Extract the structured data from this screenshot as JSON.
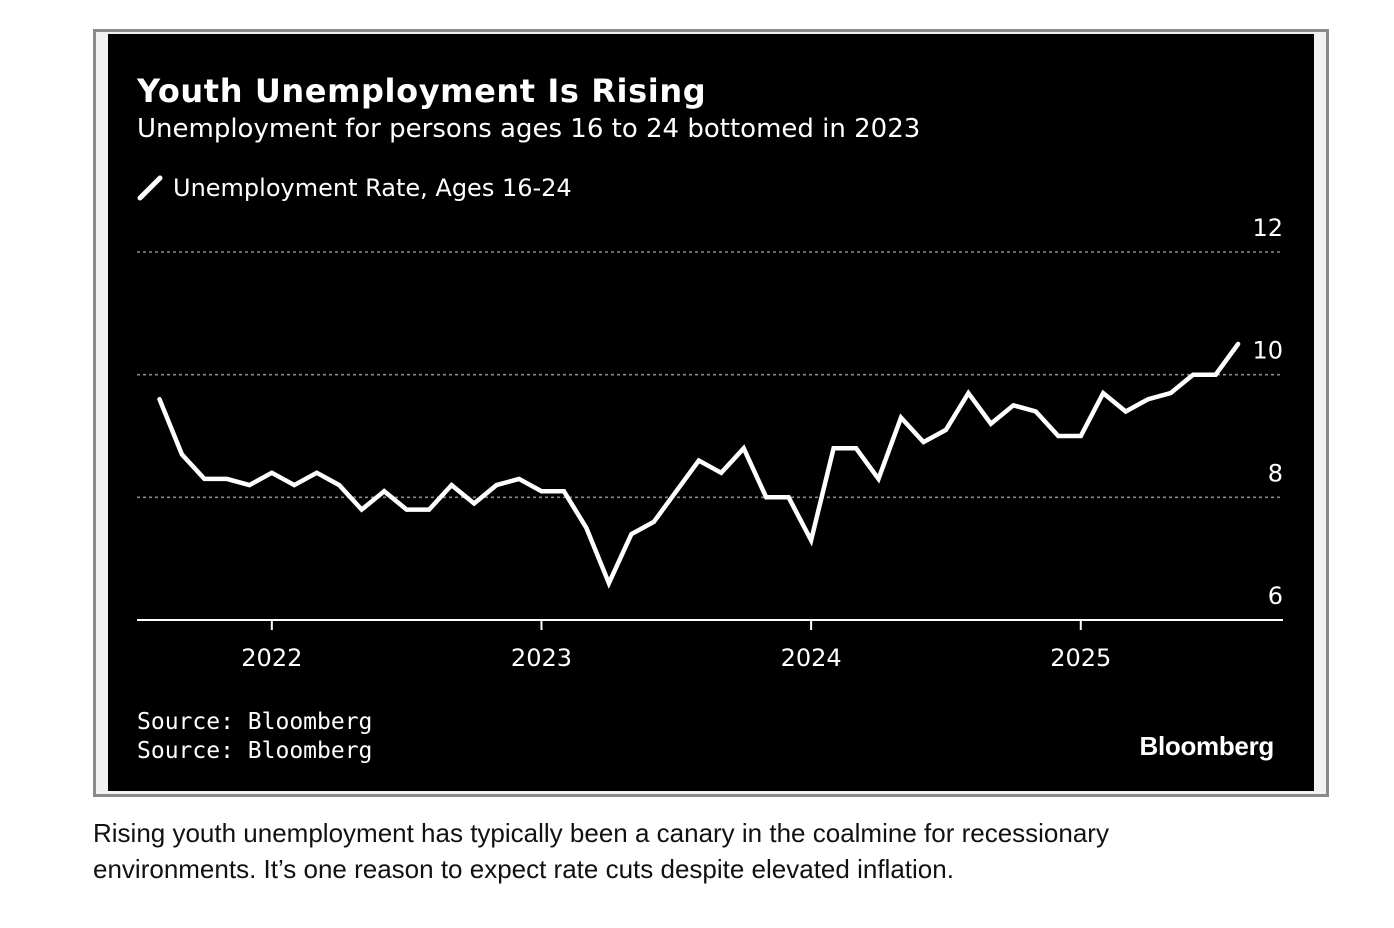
{
  "chart_data": {
    "type": "line",
    "title": "Youth Unemployment Is Rising",
    "subtitle": "Unemployment for persons ages 16 to 24 bottomed in 2023",
    "series": [
      {
        "name": "Unemployment Rate, Ages 16-24",
        "color": "#ffffff",
        "x": [
          "2021-08",
          "2021-09",
          "2021-10",
          "2021-11",
          "2021-12",
          "2022-01",
          "2022-02",
          "2022-03",
          "2022-04",
          "2022-05",
          "2022-06",
          "2022-07",
          "2022-08",
          "2022-09",
          "2022-10",
          "2022-11",
          "2022-12",
          "2023-01",
          "2023-02",
          "2023-03",
          "2023-04",
          "2023-05",
          "2023-06",
          "2023-07",
          "2023-08",
          "2023-09",
          "2023-10",
          "2023-11",
          "2023-12",
          "2024-01",
          "2024-02",
          "2024-03",
          "2024-04",
          "2024-05",
          "2024-06",
          "2024-07",
          "2024-08",
          "2024-09",
          "2024-10",
          "2024-11",
          "2024-12",
          "2025-01",
          "2025-02",
          "2025-03",
          "2025-04",
          "2025-05",
          "2025-06",
          "2025-07",
          "2025-08"
        ],
        "values": [
          9.6,
          8.7,
          8.3,
          8.3,
          8.2,
          8.4,
          8.2,
          8.4,
          8.2,
          7.8,
          8.1,
          7.8,
          7.8,
          8.2,
          7.9,
          8.2,
          8.3,
          8.1,
          8.1,
          7.5,
          6.6,
          7.4,
          7.6,
          8.1,
          8.6,
          8.4,
          8.8,
          8.0,
          8.0,
          7.3,
          8.8,
          8.8,
          8.3,
          9.3,
          8.9,
          9.1,
          9.7,
          9.2,
          9.5,
          9.4,
          9.0,
          9.0,
          9.7,
          9.4,
          9.6,
          9.7,
          10.0,
          10.0,
          10.5
        ]
      }
    ],
    "yticks": [
      "12",
      "10",
      "8",
      "6"
    ],
    "ylim": [
      6,
      12
    ],
    "xticks": [
      "2022",
      "2023",
      "2024",
      "2025"
    ],
    "xlim": [
      "2021-07",
      "2025-10"
    ],
    "grid": true,
    "legend_position": "top-left",
    "sources": [
      "Source: Bloomberg",
      "Source: Bloomberg"
    ],
    "brand": "Bloomberg"
  },
  "caption": "Rising youth unemployment has typically been a canary in the coalmine for recessionary environments. It’s one reason to expect rate cuts despite elevated inflation.",
  "colors": {
    "panel_background": "#000000",
    "line": "#ffffff",
    "grid": "#8a8a8a",
    "frame": "#8a8a8a"
  }
}
